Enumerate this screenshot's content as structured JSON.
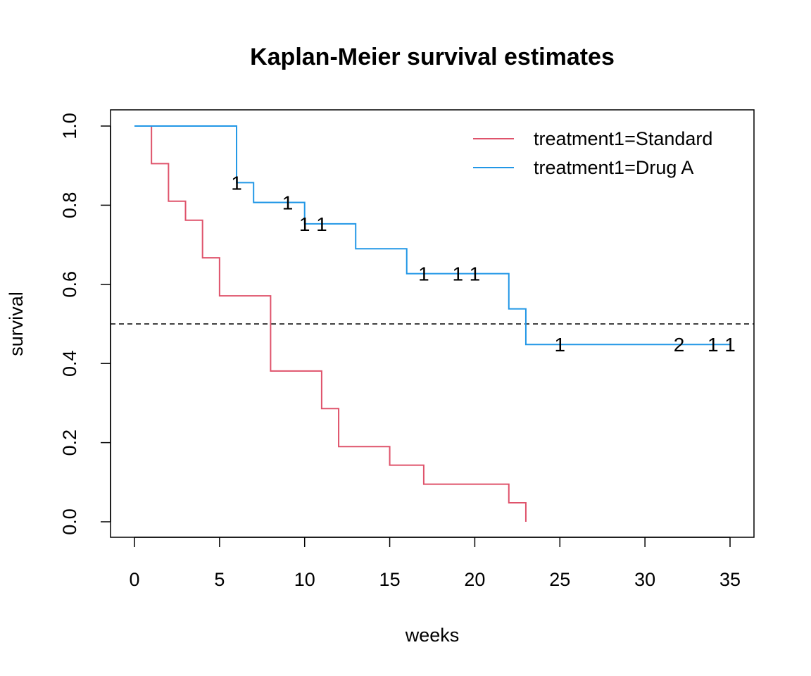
{
  "chart_data": {
    "type": "line",
    "title": "Kaplan-Meier survival estimates",
    "xlabel": "weeks",
    "ylabel": "survival",
    "xlim": [
      0,
      35
    ],
    "ylim": [
      0,
      1
    ],
    "xticks": [
      "0",
      "5",
      "10",
      "15",
      "20",
      "25",
      "30",
      "35"
    ],
    "yticks": [
      "0.0",
      "0.2",
      "0.4",
      "0.6",
      "0.8",
      "1.0"
    ],
    "grid": false,
    "legend_position": "top-right",
    "reference_line": {
      "y": 0.5,
      "style": "dashed"
    },
    "series": [
      {
        "name": "treatment1=Standard",
        "color": "#DF536B",
        "steps": [
          [
            0,
            1.0
          ],
          [
            1,
            0.905
          ],
          [
            2,
            0.81
          ],
          [
            3,
            0.762
          ],
          [
            4,
            0.667
          ],
          [
            5,
            0.571
          ],
          [
            8,
            0.381
          ],
          [
            11,
            0.286
          ],
          [
            12,
            0.19
          ],
          [
            15,
            0.143
          ],
          [
            17,
            0.095
          ],
          [
            22,
            0.048
          ],
          [
            23,
            0.0
          ]
        ],
        "end_x": 23,
        "censor_marks": []
      },
      {
        "name": "treatment1=Drug A",
        "color": "#2297E6",
        "steps": [
          [
            0,
            1.0
          ],
          [
            6,
            0.857
          ],
          [
            7,
            0.807
          ],
          [
            10,
            0.753
          ],
          [
            13,
            0.69
          ],
          [
            16,
            0.627
          ],
          [
            22,
            0.538
          ],
          [
            23,
            0.448
          ]
        ],
        "end_x": 35,
        "censor_marks": [
          {
            "x": 6,
            "y": 0.857,
            "label": "1"
          },
          {
            "x": 9,
            "y": 0.807,
            "label": "1"
          },
          {
            "x": 10,
            "y": 0.753,
            "label": "1"
          },
          {
            "x": 11,
            "y": 0.753,
            "label": "1"
          },
          {
            "x": 17,
            "y": 0.627,
            "label": "1"
          },
          {
            "x": 19,
            "y": 0.627,
            "label": "1"
          },
          {
            "x": 20,
            "y": 0.627,
            "label": "1"
          },
          {
            "x": 25,
            "y": 0.448,
            "label": "1"
          },
          {
            "x": 32,
            "y": 0.448,
            "label": "2"
          },
          {
            "x": 34,
            "y": 0.448,
            "label": "1"
          },
          {
            "x": 35,
            "y": 0.448,
            "label": "1"
          }
        ]
      }
    ]
  }
}
